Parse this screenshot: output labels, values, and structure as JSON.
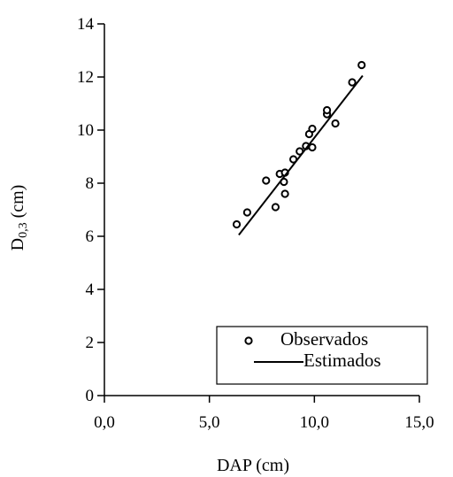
{
  "chart_data": {
    "type": "scatter",
    "xlabel": "DAP (cm)",
    "ylabel": {
      "main": "D",
      "subscript": "0,3",
      "unit": "(cm)"
    },
    "xlim": [
      0,
      15
    ],
    "ylim": [
      0,
      14
    ],
    "xticks": [
      "0,0",
      "5,0",
      "10,0",
      "15,0"
    ],
    "yticks": [
      "0",
      "2",
      "4",
      "6",
      "8",
      "10",
      "12",
      "14"
    ],
    "xtick_values": [
      0,
      5,
      10,
      15
    ],
    "ytick_values": [
      0,
      2,
      4,
      6,
      8,
      10,
      12,
      14
    ],
    "grid": false,
    "legend_position": "bottom-right",
    "series": [
      {
        "name": "Observados",
        "kind": "scatter",
        "marker": "open-circle",
        "color": "#000000",
        "points": [
          {
            "x": 6.3,
            "y": 6.45
          },
          {
            "x": 6.8,
            "y": 6.9
          },
          {
            "x": 7.7,
            "y": 8.1
          },
          {
            "x": 8.15,
            "y": 7.1
          },
          {
            "x": 8.35,
            "y": 8.35
          },
          {
            "x": 8.55,
            "y": 8.05
          },
          {
            "x": 8.6,
            "y": 7.6
          },
          {
            "x": 8.6,
            "y": 8.4
          },
          {
            "x": 9.0,
            "y": 8.9
          },
          {
            "x": 9.3,
            "y": 9.2
          },
          {
            "x": 9.6,
            "y": 9.4
          },
          {
            "x": 9.75,
            "y": 9.85
          },
          {
            "x": 9.9,
            "y": 9.35
          },
          {
            "x": 9.9,
            "y": 10.05
          },
          {
            "x": 10.6,
            "y": 10.6
          },
          {
            "x": 10.6,
            "y": 10.75
          },
          {
            "x": 11.0,
            "y": 10.25
          },
          {
            "x": 11.8,
            "y": 11.8
          },
          {
            "x": 12.25,
            "y": 12.45
          }
        ]
      },
      {
        "name": "Estimados",
        "kind": "line",
        "color": "#000000",
        "points": [
          {
            "x": 6.4,
            "y": 6.05
          },
          {
            "x": 12.3,
            "y": 12.05
          }
        ]
      }
    ]
  }
}
